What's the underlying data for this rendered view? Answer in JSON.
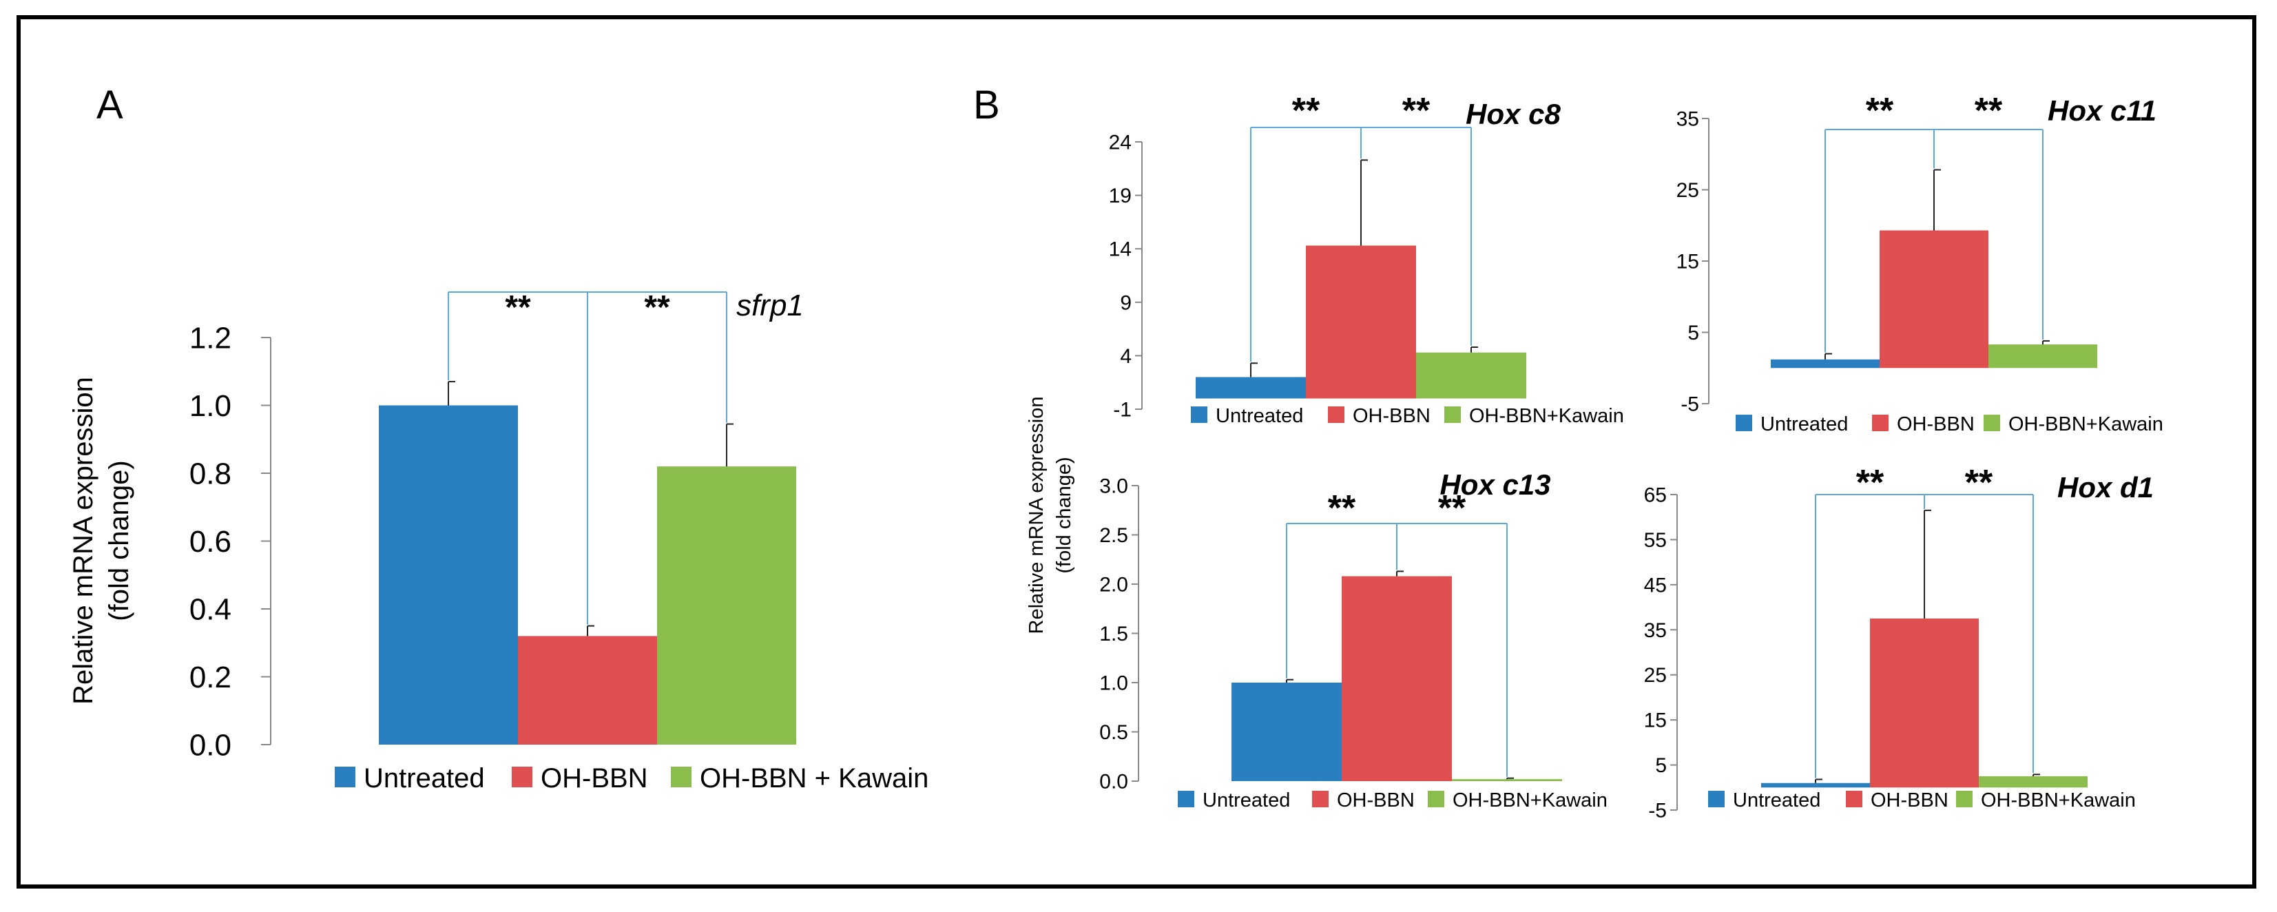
{
  "panels": {
    "a": "A",
    "b": "B"
  },
  "colors": {
    "untreated": "#2a7fc0",
    "ohbbn": "#e04f4f",
    "kawain": "#8bbd4c",
    "bracket": "#5aa8dc",
    "error": "#222222"
  },
  "chart_data": [
    {
      "type": "bar",
      "panel": "A",
      "title": "sfrp1",
      "ylabel": [
        "Relative mRNA expression",
        "(fold change)"
      ],
      "ylim": [
        0,
        1.2
      ],
      "yticks": [
        "0.0",
        "0.2",
        "0.4",
        "0.6",
        "0.8",
        "1.0",
        "1.2"
      ],
      "categories": [
        "Untreated",
        "OH-BBN",
        "OH-BBN + Kawain"
      ],
      "values": [
        1.0,
        0.32,
        0.82
      ],
      "errors": [
        0.07,
        0.03,
        0.125
      ],
      "significance": [
        "**",
        "**"
      ]
    },
    {
      "type": "bar",
      "panel": "B",
      "title": "Hox c8",
      "ylim": [
        -1,
        24
      ],
      "yticks": [
        "-1",
        "4",
        "9",
        "14",
        "19",
        "24"
      ],
      "categories": [
        "Untreated",
        "OH-BBN",
        "OH-BBN+Kawain"
      ],
      "values": [
        2.0,
        14.3,
        4.3
      ],
      "errors": [
        1.3,
        8.0,
        0.5
      ],
      "significance": [
        "**",
        "**"
      ]
    },
    {
      "type": "bar",
      "panel": "B",
      "title": "Hox c11",
      "ylim": [
        -5,
        35
      ],
      "yticks": [
        "-5",
        "5",
        "15",
        "25",
        "35"
      ],
      "categories": [
        "Untreated",
        "OH-BBN",
        "OH-BBN+Kawain"
      ],
      "values": [
        1.2,
        19.3,
        3.3
      ],
      "errors": [
        0.8,
        8.5,
        0.5
      ],
      "significance": [
        "**",
        "**"
      ]
    },
    {
      "type": "bar",
      "panel": "B",
      "title": "Hox c13",
      "ylim": [
        0,
        3.0
      ],
      "yticks": [
        "0.0",
        "0.5",
        "1.0",
        "1.5",
        "2.0",
        "2.5",
        "3.0"
      ],
      "categories": [
        "Untreated",
        "OH-BBN",
        "OH-BBN+Kawain"
      ],
      "values": [
        1.0,
        2.08,
        0.02
      ],
      "errors": [
        0.03,
        0.05,
        0.01
      ],
      "significance": [
        "**",
        "**"
      ]
    },
    {
      "type": "bar",
      "panel": "B",
      "title": "Hox d1",
      "ylim": [
        -5,
        65
      ],
      "yticks": [
        "-5",
        "5",
        "15",
        "25",
        "35",
        "45",
        "55",
        "65"
      ],
      "categories": [
        "Untreated",
        "OH-BBN",
        "OH-BBN+Kawain"
      ],
      "values": [
        1.0,
        37.5,
        2.5
      ],
      "errors": [
        0.8,
        24.0,
        0.4
      ],
      "significance": [
        "**",
        "**"
      ]
    }
  ],
  "shared_ylabel_b": [
    "Relative mRNA expression",
    "(fold change)"
  ]
}
